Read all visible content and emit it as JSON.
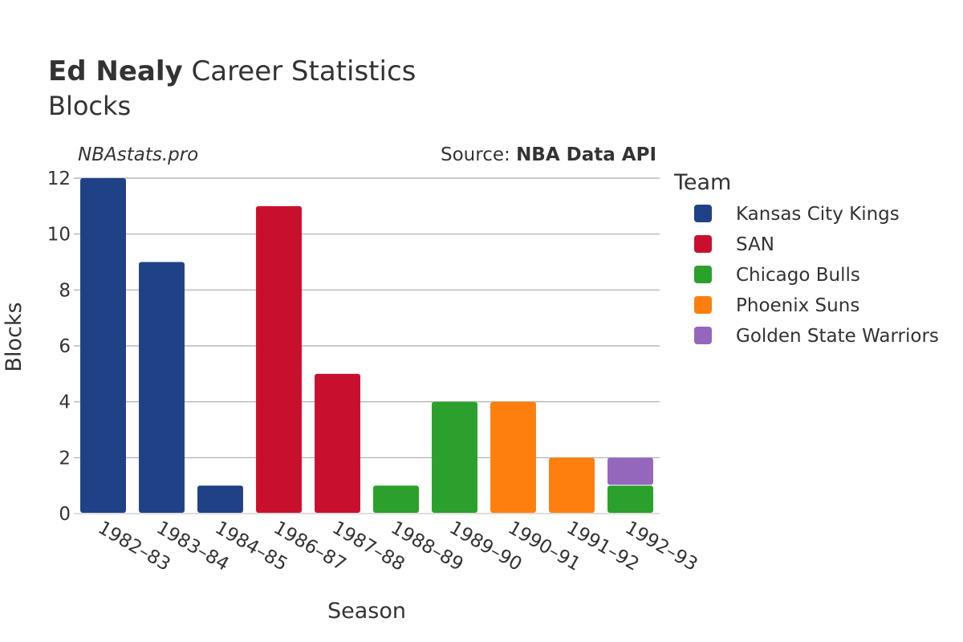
{
  "title": {
    "bold": "Ed Nealy",
    "rest": " Career Statistics",
    "subtitle": "Blocks"
  },
  "watermark": "NBAstats.pro",
  "source": {
    "label": "Source: ",
    "value": "NBA Data API"
  },
  "chart_data": {
    "type": "bar",
    "stacked": true,
    "categories": [
      "1982–83",
      "1983–84",
      "1984–85",
      "1986–87",
      "1987–88",
      "1988–89",
      "1989–90",
      "1990–91",
      "1991–92",
      "1992–93"
    ],
    "xlabel": "Season",
    "ylabel": "Blocks",
    "ylim": [
      0,
      12
    ],
    "yticks": [
      0,
      2,
      4,
      6,
      8,
      10,
      12
    ],
    "grid": true,
    "legend": {
      "title": "Team",
      "position": "right"
    },
    "series": [
      {
        "name": "Kansas City Kings",
        "color": "#1f4287",
        "values": [
          12,
          9,
          1,
          0,
          0,
          0,
          0,
          0,
          0,
          0
        ]
      },
      {
        "name": "SAN",
        "color": "#c8102e",
        "values": [
          0,
          0,
          0,
          11,
          5,
          0,
          0,
          0,
          0,
          0
        ]
      },
      {
        "name": "Chicago Bulls",
        "color": "#2ca02c",
        "values": [
          0,
          0,
          0,
          0,
          0,
          1,
          4,
          0,
          0,
          1
        ]
      },
      {
        "name": "Phoenix Suns",
        "color": "#ff7f0e",
        "values": [
          0,
          0,
          0,
          0,
          0,
          0,
          0,
          4,
          2,
          0
        ]
      },
      {
        "name": "Golden State Warriors",
        "color": "#9467bd",
        "values": [
          0,
          0,
          0,
          0,
          0,
          0,
          0,
          0,
          0,
          1
        ]
      }
    ]
  }
}
